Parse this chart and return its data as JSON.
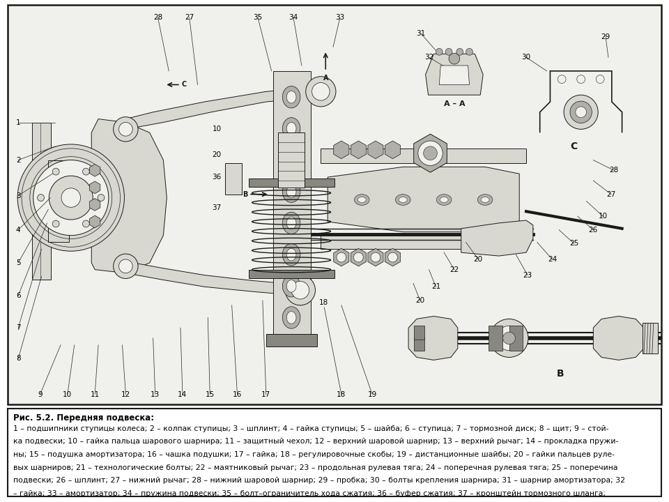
{
  "title": "Рис. 5.2. Передняя подвеска:",
  "caption_lines": [
    "1 – подшипники ступицы колеса; 2 – колпак ступицы; 3 – шплинт; 4 – гайка ступицы; 5 – шайба; 6 – ступица; 7 – тормозной диск; 8 – щит; 9 – стой-",
    "ка подвески; 10 – гайка пальца шарового шарнира; 11 – защитный чехол; 12 – верхний шаровой шарнир; 13 – верхний рычаг; 14 – прокладка пружи-",
    "ны; 15 – подушка амортизатора; 16 – чашка подушки; 17 – гайка; 18 – регулировочные скобы; 19 – дистанционные шайбы; 20 – гайки пальцев руле-",
    "вых шарниров; 21 – технологические болты; 22 – маятниковый рычаг; 23 – продольная рулевая тяга; 24 – поперечная рулевая тяга; 25 – поперечина",
    "подвески; 26 – шплинт; 27 – нижний рычаг; 28 – нижний шаровой шарнир; 29 – пробка; 30 – болты крепления шарнира; 31 – шарнир амортизатора; 32",
    "– гайка; 33 – амортизатор; 34 – пружина подвески; 35 – болт–ограничитель хода сжатия; 36 – буфер сжатия; 37 – кронштейн тормозного шланга;"
  ],
  "bg_color": "#f0f0ec",
  "border_color": "#1a1a1a",
  "text_color": "#000000",
  "title_fontsize": 8.5,
  "caption_fontsize": 7.8,
  "fig_width": 9.6,
  "fig_height": 7.2,
  "dpi": 100
}
